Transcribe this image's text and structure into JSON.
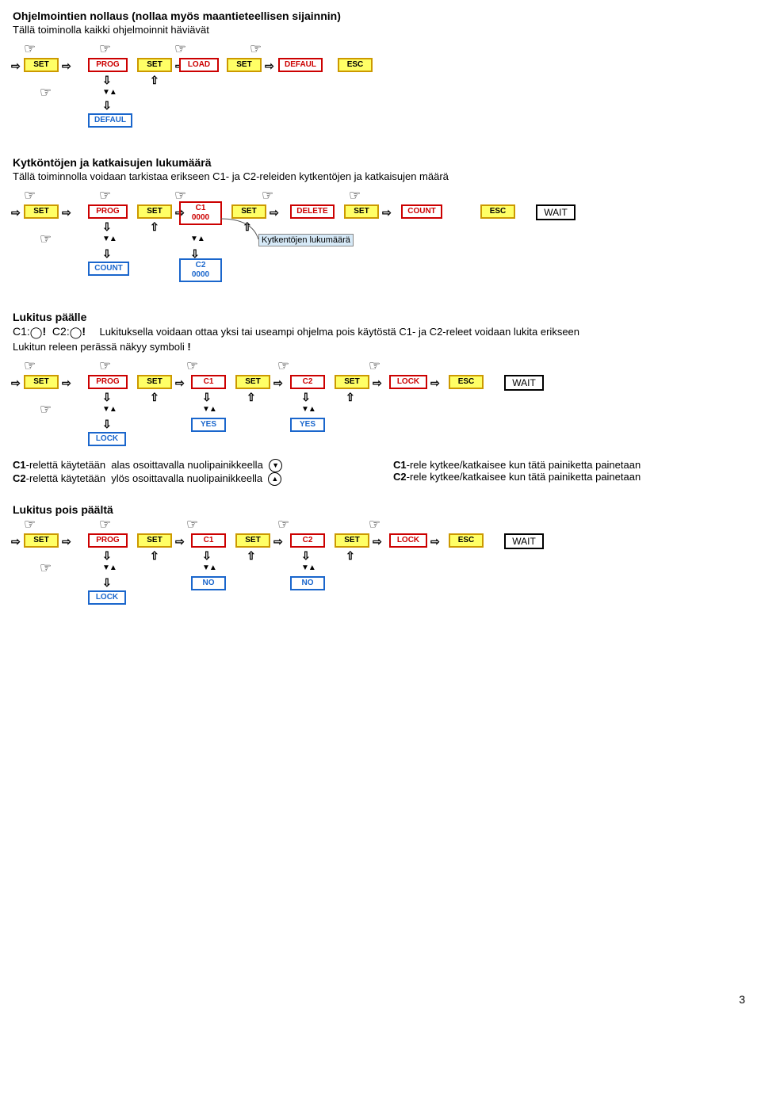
{
  "colors": {
    "yellow_fill": "#ffff66",
    "yellow_border": "#cc9900",
    "red_border": "#cc0000",
    "blue_border": "#1a66cc",
    "text_red": "#cc0000",
    "text_blue": "#1a66cc",
    "note_fill": "#d6e9f7",
    "note_border": "#888888"
  },
  "symbols": {
    "hand": "☞",
    "arr_right": "⇨",
    "arr_down": "⇩",
    "arr_up": "⇧",
    "tri_down": "▼",
    "tri_up": "▲",
    "key_glyph": "ǃ",
    "circle_down": "⮟",
    "circle_up": "⮝"
  },
  "labels": {
    "SET": "SET",
    "PROG": "PROG",
    "LOAD": "LOAD",
    "DEFAUL": "DEFAUL",
    "ESC": "ESC",
    "C1": "C1",
    "C2": "C2",
    "DELETE": "DELETE",
    "COUNT": "COUNT",
    "WAIT": "WAIT",
    "LOCK": "LOCK",
    "YES": "YES",
    "NO": "NO",
    "zeros": "0000"
  },
  "sections": {
    "reset": {
      "title": "Ohjelmointien nollaus (nollaa myös maantieteellisen sijainnin)",
      "sub": "Tällä toiminolla kaikki ohjelmoinnit häviävät"
    },
    "count": {
      "title": "Kytköntöjen ja katkaisujen lukumäärä",
      "sub": "Tällä toiminnolla voidaan tarkistaa erikseen C1- ja C2-releiden kytkentöjen ja katkaisujen määrä",
      "note": "Kytkentöjen lukumäärä"
    },
    "lock_on": {
      "title": "Lukitus päälle",
      "pre_c1": "C1:",
      "pre_c2": "C2:",
      "sub_main": "Lukituksella voidaan ottaa yksi tai useampi ohjelma pois käytöstä C1- ja C2-releet voidaan lukita erikseen",
      "sub2": "Lukitun releen perässä näkyy symboli",
      "foot_c1a": "-relettä käytetään",
      "foot_c1b": "alas osoittavalla nuolipainikkeella",
      "foot_c2a": "-relettä käytetään",
      "foot_c2b": "ylös osoittavalla nuolipainikkeella",
      "foot_right_c1": "-rele kytkee/katkaisee kun tätä painiketta painetaan",
      "foot_right_c2": "-rele kytkee/katkaisee kun tätä painiketta painetaan"
    },
    "lock_off": {
      "title": "Lukitus pois päältä"
    }
  },
  "page_number": "3"
}
